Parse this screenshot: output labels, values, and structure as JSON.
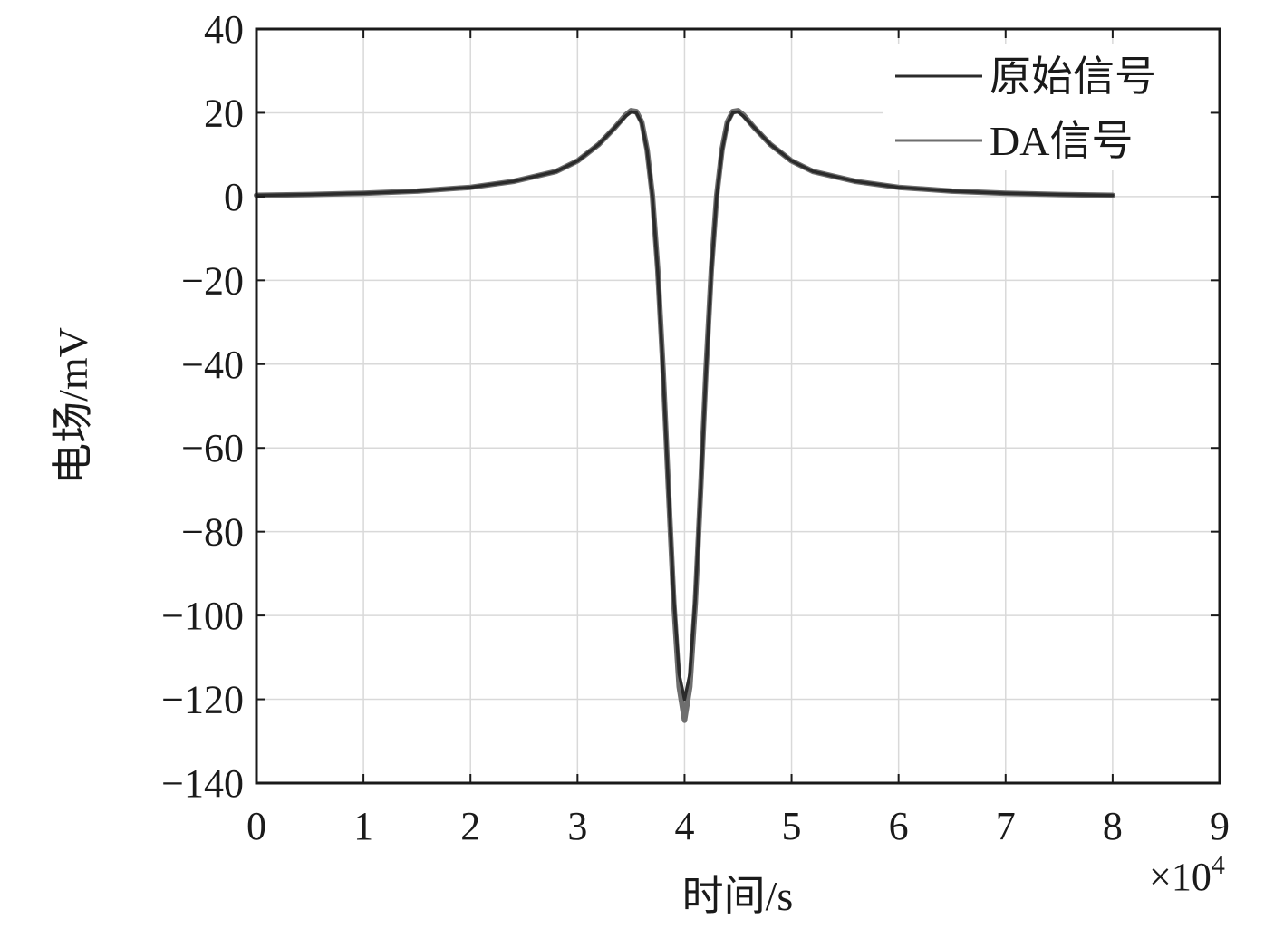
{
  "chart_data": {
    "type": "line",
    "title": "",
    "xlabel": "时间/s",
    "ylabel": "电场/mV",
    "x_multiplier": "×10",
    "x_multiplier_exponent": "4",
    "xlim": [
      0,
      9
    ],
    "ylim": [
      -140,
      40
    ],
    "xticks": [
      "0",
      "1",
      "2",
      "3",
      "4",
      "5",
      "6",
      "7",
      "8",
      "9"
    ],
    "yticks": [
      "40",
      "20",
      "0",
      "−20",
      "−40",
      "−60",
      "−80",
      "−100",
      "−120",
      "−140"
    ],
    "grid": true,
    "legend_position": "top-right",
    "series": [
      {
        "name": "原始信号",
        "color": "#2b2b2b",
        "x": [
          0,
          0.5,
          1,
          1.5,
          2,
          2.4,
          2.8,
          3.0,
          3.2,
          3.35,
          3.45,
          3.5,
          3.55,
          3.6,
          3.65,
          3.7,
          3.75,
          3.8,
          3.85,
          3.9,
          3.95,
          4.0,
          4.05,
          4.1,
          4.15,
          4.2,
          4.25,
          4.3,
          4.35,
          4.4,
          4.45,
          4.5,
          4.55,
          4.65,
          4.8,
          5.0,
          5.2,
          5.6,
          6.0,
          6.5,
          7.0,
          7.5,
          8.0
        ],
        "y": [
          0.3,
          0.5,
          0.8,
          1.3,
          2.2,
          3.6,
          6.0,
          8.5,
          12.5,
          16.5,
          19.2,
          20.2,
          20.0,
          17.5,
          11.0,
          0.0,
          -18.0,
          -42.0,
          -70.0,
          -96.0,
          -114.0,
          -120.0,
          -114.0,
          -96.0,
          -70.0,
          -42.0,
          -18.0,
          0.0,
          11.0,
          17.5,
          20.0,
          20.2,
          19.2,
          16.5,
          12.5,
          8.5,
          6.0,
          3.6,
          2.2,
          1.3,
          0.8,
          0.5,
          0.3
        ]
      },
      {
        "name": "DA信号",
        "color": "#6e6e6e",
        "x": [
          0,
          0.5,
          1,
          1.5,
          2,
          2.4,
          2.8,
          3.0,
          3.2,
          3.35,
          3.45,
          3.5,
          3.55,
          3.6,
          3.65,
          3.7,
          3.75,
          3.8,
          3.85,
          3.9,
          3.95,
          4.0,
          4.05,
          4.1,
          4.15,
          4.2,
          4.25,
          4.3,
          4.35,
          4.4,
          4.45,
          4.5,
          4.55,
          4.65,
          4.8,
          5.0,
          5.2,
          5.6,
          6.0,
          6.5,
          7.0,
          7.5,
          8.0
        ],
        "y": [
          0.3,
          0.5,
          0.8,
          1.3,
          2.2,
          3.6,
          6.0,
          8.5,
          12.5,
          16.5,
          19.5,
          20.5,
          20.3,
          17.8,
          11.2,
          0.2,
          -17.5,
          -41.5,
          -70.0,
          -97.0,
          -117.0,
          -125.0,
          -117.0,
          -97.0,
          -70.0,
          -41.5,
          -17.5,
          0.2,
          11.2,
          17.8,
          20.3,
          20.5,
          19.5,
          16.5,
          12.5,
          8.5,
          6.0,
          3.6,
          2.2,
          1.3,
          0.8,
          0.5,
          0.3
        ]
      }
    ]
  }
}
